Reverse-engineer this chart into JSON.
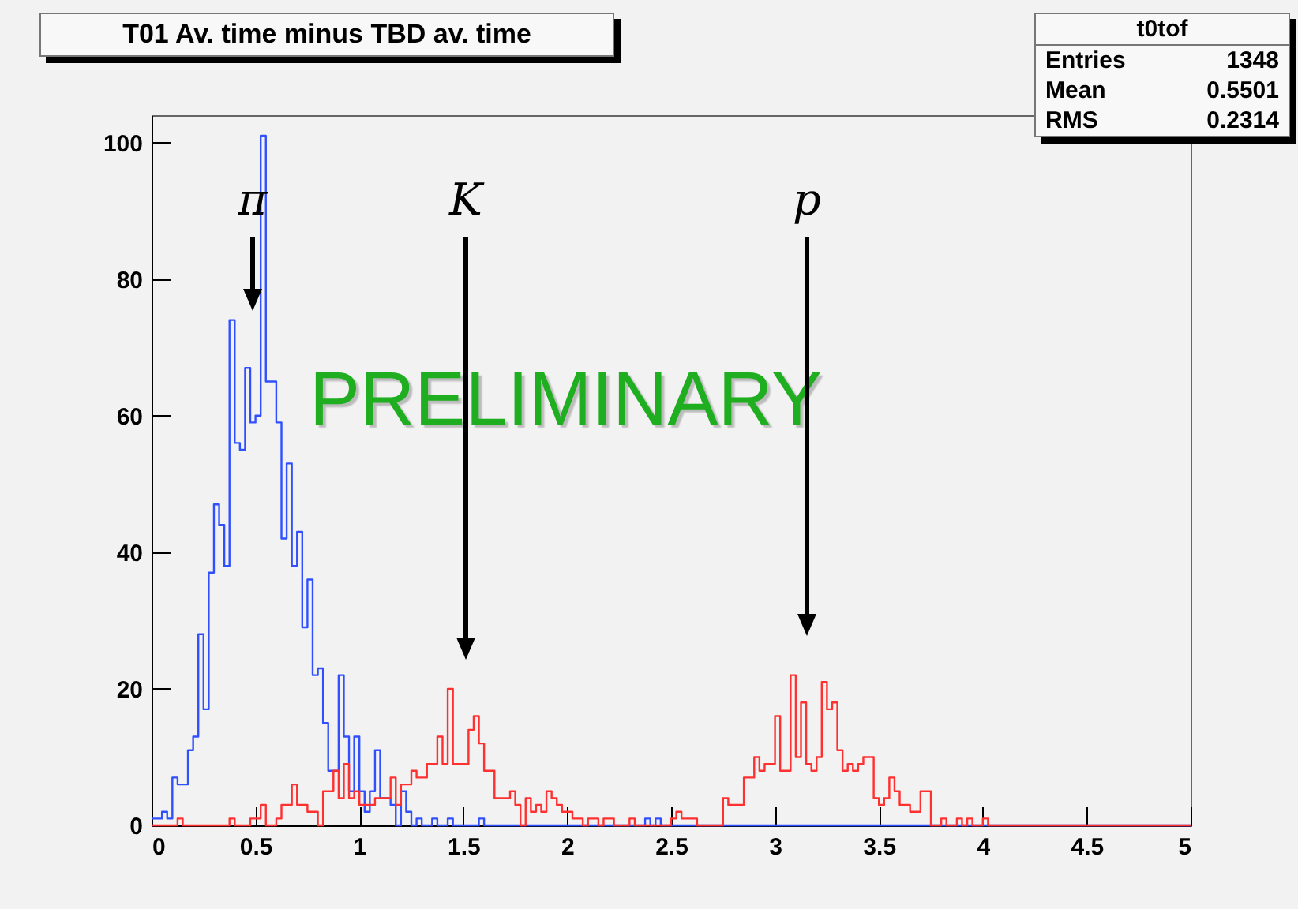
{
  "chart_data": {
    "type": "histogram",
    "title": "T01 Av. time minus TBD av. time",
    "bins": [
      0,
      0.025,
      0.05,
      0.075,
      0.1,
      0.125,
      0.15,
      0.175,
      0.2,
      0.225,
      0.25,
      0.275,
      0.3,
      0.325,
      0.35,
      0.375,
      0.4,
      0.425,
      0.45,
      0.475,
      0.5,
      0.525,
      0.55,
      0.575,
      0.6,
      0.625,
      0.65,
      0.675,
      0.7,
      0.725,
      0.75,
      0.775,
      0.8,
      0.825,
      0.85,
      0.875,
      0.9,
      0.925,
      0.95,
      0.975,
      1,
      1.025,
      1.05,
      1.075,
      1.1,
      1.125,
      1.15,
      1.175,
      1.2,
      1.225,
      1.25,
      1.275,
      1.3,
      1.325,
      1.35,
      1.375,
      1.4,
      1.425,
      1.45,
      1.475,
      1.5,
      1.525,
      1.55,
      1.575,
      1.6,
      1.625,
      1.65,
      1.675,
      1.7,
      1.725,
      1.75,
      1.775,
      1.8,
      1.825,
      1.85,
      1.875,
      1.9,
      1.925,
      1.95,
      1.975,
      2,
      2.025,
      2.05,
      2.075,
      2.1,
      2.125,
      2.15,
      2.175,
      2.2,
      2.225,
      2.25,
      2.275,
      2.3,
      2.325,
      2.35,
      2.375,
      2.4,
      2.425,
      2.45,
      2.475,
      2.5,
      2.525,
      2.55,
      2.575,
      2.6,
      2.625,
      2.65,
      2.675,
      2.7,
      2.725,
      2.75,
      2.775,
      2.8,
      2.825,
      2.85,
      2.875,
      2.9,
      2.925,
      2.95,
      2.975,
      3,
      3.025,
      3.05,
      3.075,
      3.1,
      3.125,
      3.15,
      3.175,
      3.2,
      3.225,
      3.25,
      3.275,
      3.3,
      3.325,
      3.35,
      3.375,
      3.4,
      3.425,
      3.45,
      3.475,
      3.5,
      3.525,
      3.55,
      3.575,
      3.6,
      3.625,
      3.65,
      3.675,
      3.7,
      3.725,
      3.75,
      3.775,
      3.8,
      3.825,
      3.85,
      3.875,
      3.9,
      3.925,
      3.95,
      3.975,
      4,
      4.025,
      4.05,
      4.075,
      4.1,
      4.125,
      4.15,
      4.175,
      4.2,
      4.225,
      4.25,
      4.275,
      4.3,
      4.325,
      4.35,
      4.375,
      4.4,
      4.425,
      4.45,
      4.475,
      4.5,
      4.525,
      4.55,
      4.575,
      4.6,
      4.625,
      4.65,
      4.675,
      4.7,
      4.725,
      4.75,
      4.775,
      4.8,
      4.825,
      4.85,
      4.875,
      4.9,
      4.925,
      4.95,
      4.975,
      5
    ],
    "series": [
      {
        "color": "#3050ff",
        "values": [
          1,
          1,
          2,
          1,
          7,
          6,
          6,
          11,
          13,
          28,
          17,
          37,
          47,
          44,
          38,
          74,
          56,
          55,
          67,
          59,
          60,
          101,
          65,
          65,
          59,
          42,
          53,
          38,
          43,
          29,
          36,
          22,
          23,
          15,
          8,
          8,
          22,
          13,
          5,
          13,
          5,
          2,
          5,
          11,
          4,
          4,
          3,
          0,
          5,
          2,
          0,
          1,
          0,
          0,
          1,
          0,
          0,
          1,
          0,
          0,
          0,
          0,
          0,
          1,
          0,
          0,
          0,
          0,
          0,
          0,
          0,
          0,
          0,
          0,
          0,
          0,
          0,
          0,
          0,
          0,
          0,
          0,
          0,
          0,
          0,
          0,
          0,
          0,
          0,
          0,
          0,
          0,
          0,
          0,
          0,
          1,
          0,
          1,
          0,
          0,
          0,
          0,
          0,
          0,
          0,
          0,
          0,
          0,
          0,
          0,
          0,
          0,
          0,
          0,
          0,
          0,
          0,
          0,
          0,
          0,
          0,
          0,
          0,
          0,
          0,
          0,
          0,
          0,
          0,
          0,
          0,
          0,
          0,
          0,
          0,
          0,
          0,
          0,
          0,
          0,
          0,
          0,
          0,
          0,
          0,
          0,
          0,
          0,
          0,
          0,
          0,
          0,
          0,
          0,
          0,
          0,
          0,
          0,
          0,
          0,
          0,
          0,
          0,
          0,
          0,
          0,
          0,
          0,
          0,
          0,
          0,
          0,
          0,
          0,
          0,
          0,
          0,
          0,
          0,
          0,
          0,
          0,
          0,
          0,
          0,
          0,
          0,
          0,
          0,
          0,
          0,
          0,
          0,
          0,
          0,
          0,
          0,
          0,
          0,
          0
        ]
      },
      {
        "color": "#ff3030",
        "values": [
          0,
          0,
          0,
          0,
          0,
          1,
          0,
          0,
          0,
          0,
          0,
          0,
          0,
          0,
          0,
          1,
          0,
          0,
          0,
          1,
          1,
          3,
          0,
          0,
          1,
          3,
          3,
          6,
          3,
          3,
          2,
          2,
          0,
          5,
          5,
          8,
          4,
          9,
          4,
          5,
          3,
          3,
          3,
          4,
          4,
          4,
          7,
          3,
          6,
          6,
          8,
          7,
          7,
          9,
          9,
          13,
          9,
          20,
          9,
          9,
          9,
          14,
          16,
          12,
          8,
          8,
          4,
          4,
          4,
          5,
          3,
          0,
          4,
          2,
          3,
          2,
          5,
          4,
          3,
          2,
          2,
          1,
          1,
          0,
          1,
          1,
          0,
          1,
          1,
          0,
          0,
          0,
          1,
          0,
          0,
          0,
          0,
          0,
          0,
          0,
          1,
          2,
          1,
          1,
          1,
          0,
          0,
          0,
          0,
          0,
          4,
          3,
          3,
          3,
          7,
          7,
          10,
          8,
          9,
          9,
          16,
          8,
          8,
          22,
          10,
          18,
          9,
          8,
          10,
          21,
          17,
          18,
          11,
          8,
          9,
          8,
          9,
          10,
          10,
          4,
          3,
          4,
          7,
          5,
          3,
          3,
          2,
          2,
          5,
          5,
          0,
          0,
          1,
          0,
          0,
          1,
          0,
          1,
          0,
          0,
          1,
          0,
          0,
          0,
          0,
          0,
          0,
          0,
          0,
          0,
          0,
          0,
          0,
          0,
          0,
          0,
          0,
          0,
          0,
          0,
          0,
          0,
          0,
          0,
          0,
          0,
          0,
          0,
          0,
          0,
          0,
          0,
          0,
          0,
          0,
          0,
          0,
          0,
          0,
          0
        ]
      }
    ],
    "xlim": [
      0,
      5
    ],
    "ylim": [
      0,
      104
    ],
    "xticks": [
      0,
      0.5,
      1,
      1.5,
      2,
      2.5,
      3,
      3.5,
      4,
      4.5,
      5
    ],
    "yticks": [
      0,
      20,
      40,
      60,
      80,
      100
    ],
    "annotations": [
      "π",
      "K",
      "p",
      "PRELIMINARY",
      "t0tof",
      "Entries",
      "1348",
      "Mean",
      "0.5501",
      "RMS",
      "0.2314"
    ]
  }
}
